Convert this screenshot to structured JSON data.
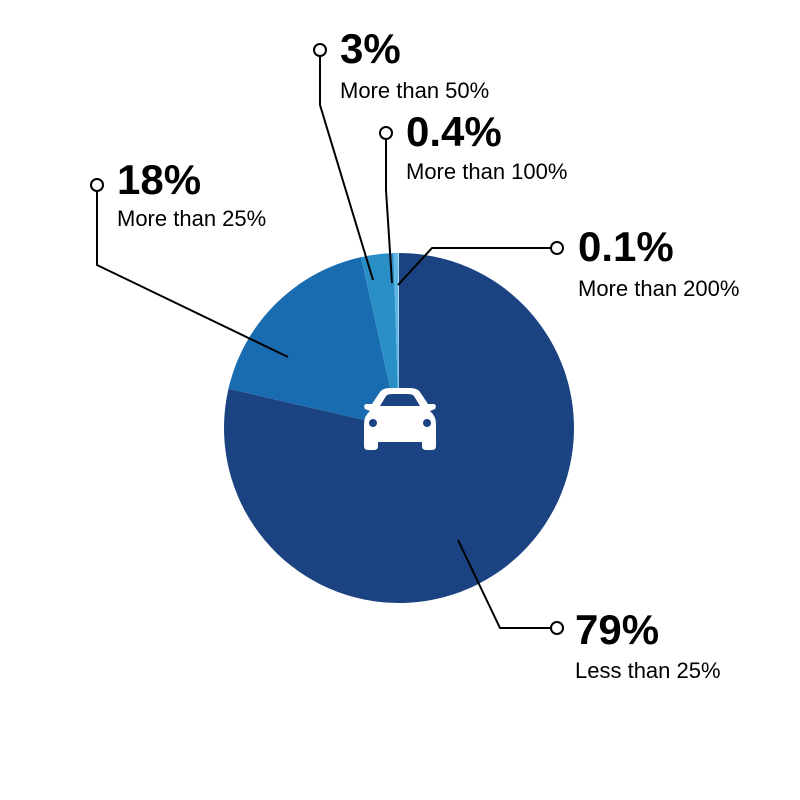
{
  "chart_data": {
    "type": "pie",
    "categories": [
      "Less than 25%",
      "More than 25%",
      "More than 50%",
      "More than 100%",
      "More than 200%"
    ],
    "values": [
      79,
      18,
      3,
      0.4,
      0.1
    ],
    "value_labels": [
      "79%",
      "18%",
      "3%",
      "0.4%",
      "0.1%"
    ],
    "colors": [
      "#1b4382",
      "#1a6cb0",
      "#2b8fc7",
      "#5eb7e3",
      "#a7d8ef"
    ]
  }
}
